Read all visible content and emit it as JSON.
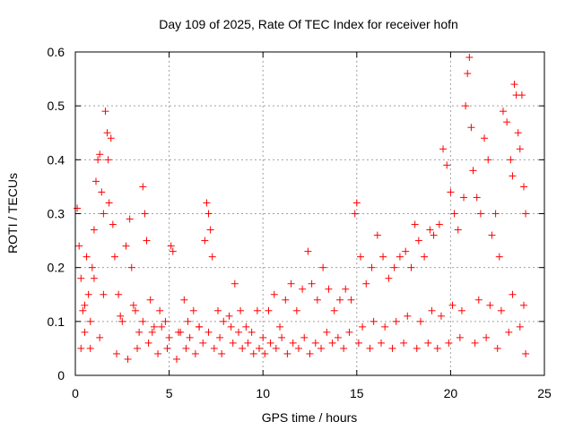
{
  "chart_data": {
    "type": "scatter",
    "title": "Day 109 of 2025, Rate Of TEC Index for receiver hofn",
    "xlabel": "GPS time / hours",
    "ylabel": "ROTI / TECUs",
    "xlim": [
      0,
      25
    ],
    "ylim": [
      0,
      0.6
    ],
    "xticks": [
      "0",
      "5",
      "10",
      "15",
      "20",
      "25"
    ],
    "yticks": [
      "0",
      "0.1",
      "0.2",
      "0.3",
      "0.4",
      "0.5",
      "0.6"
    ],
    "grid": true,
    "marker": "+",
    "color": "#ff0000",
    "series": [
      {
        "points": [
          [
            0.1,
            0.31
          ],
          [
            0.2,
            0.24
          ],
          [
            0.3,
            0.18
          ],
          [
            0.4,
            0.12
          ],
          [
            0.5,
            0.08
          ],
          [
            0.6,
            0.22
          ],
          [
            0.7,
            0.15
          ],
          [
            0.8,
            0.05
          ],
          [
            0.9,
            0.2
          ],
          [
            1.0,
            0.27
          ],
          [
            1.1,
            0.36
          ],
          [
            1.2,
            0.4
          ],
          [
            1.3,
            0.41
          ],
          [
            1.4,
            0.34
          ],
          [
            1.5,
            0.3
          ],
          [
            1.6,
            0.49
          ],
          [
            1.7,
            0.45
          ],
          [
            1.75,
            0.4
          ],
          [
            1.8,
            0.32
          ],
          [
            1.9,
            0.44
          ],
          [
            2.0,
            0.28
          ],
          [
            2.1,
            0.22
          ],
          [
            2.3,
            0.15
          ],
          [
            2.5,
            0.1
          ],
          [
            2.7,
            0.24
          ],
          [
            2.9,
            0.29
          ],
          [
            3.0,
            0.2
          ],
          [
            3.2,
            0.12
          ],
          [
            3.4,
            0.08
          ],
          [
            3.6,
            0.35
          ],
          [
            3.7,
            0.3
          ],
          [
            3.8,
            0.25
          ],
          [
            4.0,
            0.14
          ],
          [
            4.2,
            0.09
          ],
          [
            4.5,
            0.12
          ],
          [
            4.8,
            0.1
          ],
          [
            5.1,
            0.24
          ],
          [
            5.2,
            0.23
          ],
          [
            5.5,
            0.08
          ],
          [
            5.8,
            0.14
          ],
          [
            6.0,
            0.1
          ],
          [
            6.3,
            0.12
          ],
          [
            6.6,
            0.09
          ],
          [
            6.9,
            0.25
          ],
          [
            7.0,
            0.32
          ],
          [
            7.1,
            0.3
          ],
          [
            7.2,
            0.27
          ],
          [
            7.3,
            0.22
          ],
          [
            7.6,
            0.12
          ],
          [
            7.9,
            0.1
          ],
          [
            8.2,
            0.11
          ],
          [
            8.5,
            0.17
          ],
          [
            8.8,
            0.12
          ],
          [
            9.1,
            0.09
          ],
          [
            9.4,
            0.08
          ],
          [
            9.7,
            0.12
          ],
          [
            10.0,
            0.07
          ],
          [
            10.3,
            0.12
          ],
          [
            10.6,
            0.15
          ],
          [
            10.9,
            0.09
          ],
          [
            11.2,
            0.14
          ],
          [
            11.5,
            0.17
          ],
          [
            11.8,
            0.12
          ],
          [
            12.1,
            0.16
          ],
          [
            12.4,
            0.23
          ],
          [
            12.6,
            0.17
          ],
          [
            12.9,
            0.14
          ],
          [
            13.2,
            0.2
          ],
          [
            13.5,
            0.16
          ],
          [
            13.8,
            0.12
          ],
          [
            14.1,
            0.14
          ],
          [
            14.4,
            0.16
          ],
          [
            14.7,
            0.14
          ],
          [
            14.9,
            0.3
          ],
          [
            15.0,
            0.32
          ],
          [
            15.2,
            0.22
          ],
          [
            15.5,
            0.17
          ],
          [
            15.8,
            0.2
          ],
          [
            16.1,
            0.26
          ],
          [
            16.4,
            0.22
          ],
          [
            16.7,
            0.18
          ],
          [
            17.0,
            0.2
          ],
          [
            17.3,
            0.22
          ],
          [
            17.6,
            0.23
          ],
          [
            17.9,
            0.2
          ],
          [
            18.1,
            0.28
          ],
          [
            18.3,
            0.25
          ],
          [
            18.6,
            0.22
          ],
          [
            18.9,
            0.27
          ],
          [
            19.1,
            0.26
          ],
          [
            19.4,
            0.28
          ],
          [
            19.6,
            0.42
          ],
          [
            19.8,
            0.39
          ],
          [
            20.0,
            0.34
          ],
          [
            20.2,
            0.3
          ],
          [
            20.4,
            0.27
          ],
          [
            20.7,
            0.33
          ],
          [
            20.8,
            0.5
          ],
          [
            20.9,
            0.56
          ],
          [
            21.0,
            0.59
          ],
          [
            21.1,
            0.46
          ],
          [
            21.2,
            0.38
          ],
          [
            21.4,
            0.33
          ],
          [
            21.6,
            0.3
          ],
          [
            21.8,
            0.44
          ],
          [
            22.0,
            0.4
          ],
          [
            22.2,
            0.26
          ],
          [
            22.4,
            0.3
          ],
          [
            22.6,
            0.22
          ],
          [
            22.8,
            0.49
          ],
          [
            23.0,
            0.47
          ],
          [
            23.2,
            0.4
          ],
          [
            23.3,
            0.37
          ],
          [
            23.4,
            0.54
          ],
          [
            23.5,
            0.52
          ],
          [
            23.6,
            0.45
          ],
          [
            23.7,
            0.42
          ],
          [
            23.8,
            0.52
          ],
          [
            23.9,
            0.35
          ],
          [
            24.0,
            0.3
          ],
          [
            0.3,
            0.05
          ],
          [
            0.8,
            0.1
          ],
          [
            1.3,
            0.07
          ],
          [
            2.2,
            0.04
          ],
          [
            2.8,
            0.03
          ],
          [
            3.3,
            0.05
          ],
          [
            3.9,
            0.06
          ],
          [
            4.4,
            0.04
          ],
          [
            4.9,
            0.05
          ],
          [
            5.4,
            0.03
          ],
          [
            5.9,
            0.05
          ],
          [
            6.4,
            0.04
          ],
          [
            6.8,
            0.06
          ],
          [
            7.4,
            0.05
          ],
          [
            7.8,
            0.04
          ],
          [
            8.4,
            0.06
          ],
          [
            8.9,
            0.05
          ],
          [
            9.5,
            0.04
          ],
          [
            10.1,
            0.04
          ],
          [
            10.7,
            0.05
          ],
          [
            11.3,
            0.04
          ],
          [
            11.9,
            0.05
          ],
          [
            12.5,
            0.04
          ],
          [
            13.1,
            0.05
          ],
          [
            13.7,
            0.06
          ],
          [
            14.3,
            0.05
          ],
          [
            15.1,
            0.06
          ],
          [
            15.7,
            0.05
          ],
          [
            16.3,
            0.06
          ],
          [
            16.9,
            0.05
          ],
          [
            17.5,
            0.06
          ],
          [
            18.2,
            0.05
          ],
          [
            18.8,
            0.06
          ],
          [
            19.3,
            0.05
          ],
          [
            19.9,
            0.06
          ],
          [
            20.5,
            0.07
          ],
          [
            21.3,
            0.06
          ],
          [
            21.9,
            0.07
          ],
          [
            22.5,
            0.05
          ],
          [
            23.1,
            0.08
          ],
          [
            23.7,
            0.09
          ],
          [
            24.0,
            0.04
          ],
          [
            0.5,
            0.13
          ],
          [
            1.0,
            0.18
          ],
          [
            1.5,
            0.15
          ],
          [
            2.4,
            0.11
          ],
          [
            3.1,
            0.13
          ],
          [
            3.6,
            0.1
          ],
          [
            4.1,
            0.08
          ],
          [
            4.6,
            0.09
          ],
          [
            5.0,
            0.07
          ],
          [
            5.6,
            0.08
          ],
          [
            6.1,
            0.07
          ],
          [
            6.6,
            0.09
          ],
          [
            7.1,
            0.08
          ],
          [
            7.7,
            0.07
          ],
          [
            8.3,
            0.09
          ],
          [
            8.7,
            0.08
          ],
          [
            9.2,
            0.06
          ],
          [
            9.8,
            0.05
          ],
          [
            10.4,
            0.06
          ],
          [
            11.0,
            0.07
          ],
          [
            11.6,
            0.06
          ],
          [
            12.2,
            0.07
          ],
          [
            12.8,
            0.06
          ],
          [
            13.4,
            0.08
          ],
          [
            14.0,
            0.07
          ],
          [
            14.6,
            0.08
          ],
          [
            15.3,
            0.09
          ],
          [
            15.9,
            0.1
          ],
          [
            16.5,
            0.09
          ],
          [
            17.1,
            0.1
          ],
          [
            17.7,
            0.11
          ],
          [
            18.4,
            0.1
          ],
          [
            19.0,
            0.12
          ],
          [
            19.5,
            0.11
          ],
          [
            20.1,
            0.13
          ],
          [
            20.6,
            0.12
          ],
          [
            21.5,
            0.14
          ],
          [
            22.1,
            0.13
          ],
          [
            22.7,
            0.12
          ],
          [
            23.3,
            0.15
          ],
          [
            23.9,
            0.13
          ]
        ]
      }
    ]
  }
}
